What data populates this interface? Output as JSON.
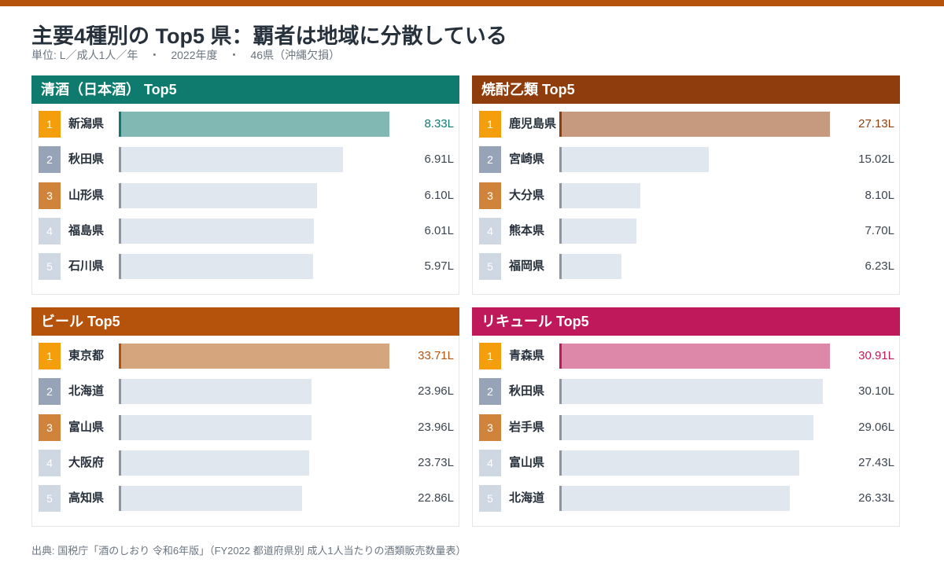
{
  "title": "主要4種別の Top5 県：覇者は地域に分散している",
  "subtitle": "単位: L／成人1人／年　・　2022年度　・　46県（沖縄欠損）",
  "source": "出典: 国税庁「酒のしおり 令和6年版」（FY2022 都道府県別 成人1人当たりの酒類販売数量表）",
  "colors": {
    "top_bar": "#b5520c",
    "rank1": "#f59e0b",
    "rank2": "#97a3b6",
    "rank3": "#d0843b",
    "rank45": "#cfd7e2",
    "bar_default": "#e1e7ef",
    "bar_edge": "#8b96a5"
  },
  "chart_data": [
    {
      "type": "bar",
      "title": "清酒（日本酒） Top5",
      "header_color": "#0f7a6e",
      "highlight_bar_color": "#82b8b3",
      "value_color": "#0f7a6e",
      "unit": "L",
      "xlim": [
        0,
        8.33
      ],
      "ranks": [
        "1",
        "2",
        "3",
        "4",
        "5"
      ],
      "categories": [
        "新潟県",
        "秋田県",
        "山形県",
        "福島県",
        "石川県"
      ],
      "values": [
        8.33,
        6.91,
        6.1,
        6.01,
        5.97
      ],
      "value_labels": [
        "8.33L",
        "6.91L",
        "6.10L",
        "6.01L",
        "5.97L"
      ]
    },
    {
      "type": "bar",
      "title": "焼酎乙類 Top5",
      "header_color": "#8f3d0c",
      "highlight_bar_color": "#c59a7f",
      "value_color": "#8f3d0c",
      "unit": "L",
      "xlim": [
        0,
        27.13
      ],
      "ranks": [
        "1",
        "2",
        "3",
        "4",
        "5"
      ],
      "categories": [
        "鹿児島県",
        "宮崎県",
        "大分県",
        "熊本県",
        "福岡県"
      ],
      "values": [
        27.13,
        15.02,
        8.1,
        7.7,
        6.23
      ],
      "value_labels": [
        "27.13L",
        "15.02L",
        "8.10L",
        "7.70L",
        "6.23L"
      ]
    },
    {
      "type": "bar",
      "title": "ビール Top5",
      "header_color": "#b5520c",
      "highlight_bar_color": "#d5a57d",
      "value_color": "#b5520c",
      "unit": "L",
      "xlim": [
        0,
        33.71
      ],
      "ranks": [
        "1",
        "2",
        "3",
        "4",
        "5"
      ],
      "categories": [
        "東京都",
        "北海道",
        "富山県",
        "大阪府",
        "高知県"
      ],
      "values": [
        33.71,
        23.96,
        23.96,
        23.73,
        22.86
      ],
      "value_labels": [
        "33.71L",
        "23.96L",
        "23.96L",
        "23.73L",
        "22.86L"
      ]
    },
    {
      "type": "bar",
      "title": "リキュール Top5",
      "header_color": "#c0195b",
      "highlight_bar_color": "#dd87a9",
      "value_color": "#c0195b",
      "unit": "L",
      "xlim": [
        0,
        30.91
      ],
      "ranks": [
        "1",
        "2",
        "3",
        "4",
        "5"
      ],
      "categories": [
        "青森県",
        "秋田県",
        "岩手県",
        "富山県",
        "北海道"
      ],
      "values": [
        30.91,
        30.1,
        29.06,
        27.43,
        26.33
      ],
      "value_labels": [
        "30.91L",
        "30.10L",
        "29.06L",
        "27.43L",
        "26.33L"
      ]
    }
  ]
}
